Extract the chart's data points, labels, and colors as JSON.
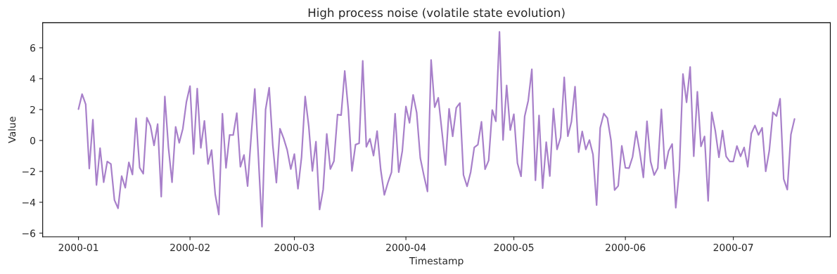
{
  "chart_data": {
    "type": "line",
    "title": "High process noise (volatile state evolution)",
    "xlabel": "Timestamp",
    "ylabel": "Value",
    "x": [
      "2000-01-01",
      "2000-01-02",
      "2000-01-03",
      "2000-01-04",
      "2000-01-05",
      "2000-01-06",
      "2000-01-07",
      "2000-01-08",
      "2000-01-09",
      "2000-01-10",
      "2000-01-11",
      "2000-01-12",
      "2000-01-13",
      "2000-01-14",
      "2000-01-15",
      "2000-01-16",
      "2000-01-17",
      "2000-01-18",
      "2000-01-19",
      "2000-01-20",
      "2000-01-21",
      "2000-01-22",
      "2000-01-23",
      "2000-01-24",
      "2000-01-25",
      "2000-01-26",
      "2000-01-27",
      "2000-01-28",
      "2000-01-29",
      "2000-01-30",
      "2000-01-31",
      "2000-02-01",
      "2000-02-02",
      "2000-02-03",
      "2000-02-04",
      "2000-02-05",
      "2000-02-06",
      "2000-02-07",
      "2000-02-08",
      "2000-02-09",
      "2000-02-10",
      "2000-02-11",
      "2000-02-12",
      "2000-02-13",
      "2000-02-14",
      "2000-02-15",
      "2000-02-16",
      "2000-02-17",
      "2000-02-18",
      "2000-02-19",
      "2000-02-20",
      "2000-02-21",
      "2000-02-22",
      "2000-02-23",
      "2000-02-24",
      "2000-02-25",
      "2000-02-26",
      "2000-02-27",
      "2000-02-28",
      "2000-02-29",
      "2000-03-01",
      "2000-03-02",
      "2000-03-03",
      "2000-03-04",
      "2000-03-05",
      "2000-03-06",
      "2000-03-07",
      "2000-03-08",
      "2000-03-09",
      "2000-03-10",
      "2000-03-11",
      "2000-03-12",
      "2000-03-13",
      "2000-03-14",
      "2000-03-15",
      "2000-03-16",
      "2000-03-17",
      "2000-03-18",
      "2000-03-19",
      "2000-03-20",
      "2000-03-21",
      "2000-03-22",
      "2000-03-23",
      "2000-03-24",
      "2000-03-25",
      "2000-03-26",
      "2000-03-27",
      "2000-03-28",
      "2000-03-29",
      "2000-03-30",
      "2000-03-31",
      "2000-04-01",
      "2000-04-02",
      "2000-04-03",
      "2000-04-04",
      "2000-04-05",
      "2000-04-06",
      "2000-04-07",
      "2000-04-08",
      "2000-04-09",
      "2000-04-10",
      "2000-04-11",
      "2000-04-12",
      "2000-04-13",
      "2000-04-14",
      "2000-04-15",
      "2000-04-16",
      "2000-04-17",
      "2000-04-18",
      "2000-04-19",
      "2000-04-20",
      "2000-04-21",
      "2000-04-22",
      "2000-04-23",
      "2000-04-24",
      "2000-04-25",
      "2000-04-26",
      "2000-04-27",
      "2000-04-28",
      "2000-04-29",
      "2000-04-30",
      "2000-05-01",
      "2000-05-02",
      "2000-05-03",
      "2000-05-04",
      "2000-05-05",
      "2000-05-06",
      "2000-05-07",
      "2000-05-08",
      "2000-05-09",
      "2000-05-10",
      "2000-05-11",
      "2000-05-12",
      "2000-05-13",
      "2000-05-14",
      "2000-05-15",
      "2000-05-16",
      "2000-05-17",
      "2000-05-18",
      "2000-05-19",
      "2000-05-20",
      "2000-05-21",
      "2000-05-22",
      "2000-05-23",
      "2000-05-24",
      "2000-05-25",
      "2000-05-26",
      "2000-05-27",
      "2000-05-28",
      "2000-05-29",
      "2000-05-30",
      "2000-05-31",
      "2000-06-01",
      "2000-06-02",
      "2000-06-03",
      "2000-06-04",
      "2000-06-05",
      "2000-06-06",
      "2000-06-07",
      "2000-06-08",
      "2000-06-09",
      "2000-06-10",
      "2000-06-11",
      "2000-06-12",
      "2000-06-13",
      "2000-06-14",
      "2000-06-15",
      "2000-06-16",
      "2000-06-17",
      "2000-06-18",
      "2000-06-19",
      "2000-06-20",
      "2000-06-21",
      "2000-06-22",
      "2000-06-23",
      "2000-06-24",
      "2000-06-25",
      "2000-06-26",
      "2000-06-27",
      "2000-06-28",
      "2000-06-29",
      "2000-06-30",
      "2000-07-01",
      "2000-07-02",
      "2000-07-03",
      "2000-07-04",
      "2000-07-05",
      "2000-07-06",
      "2000-07-07",
      "2000-07-08",
      "2000-07-09",
      "2000-07-10",
      "2000-07-11",
      "2000-07-12",
      "2000-07-13",
      "2000-07-14",
      "2000-07-15",
      "2000-07-16",
      "2000-07-17",
      "2000-07-18"
    ],
    "series": [
      {
        "color": "#a880ca",
        "values": [
          2.03,
          3.0,
          2.35,
          -1.82,
          1.35,
          -2.88,
          -0.5,
          -2.7,
          -1.36,
          -1.52,
          -3.86,
          -4.39,
          -2.3,
          -3.06,
          -1.42,
          -2.2,
          1.44,
          -1.76,
          -2.15,
          1.47,
          0.95,
          -0.32,
          1.06,
          -3.64,
          2.85,
          -0.45,
          -2.7,
          0.88,
          -0.15,
          0.76,
          2.5,
          3.52,
          -0.88,
          3.36,
          -0.48,
          1.27,
          -1.52,
          -0.62,
          -3.48,
          -4.79,
          1.73,
          -1.77,
          0.36,
          0.35,
          1.77,
          -1.7,
          -0.94,
          -2.95,
          0.3,
          3.33,
          -1.06,
          -5.58,
          2.0,
          3.41,
          -0.3,
          -2.73,
          0.76,
          0.15,
          -0.61,
          -1.85,
          -0.88,
          -3.12,
          -1.06,
          2.85,
          0.91,
          -1.97,
          -0.08,
          -4.47,
          -3.18,
          0.42,
          -1.85,
          -1.33,
          1.67,
          1.64,
          4.5,
          1.97,
          -1.97,
          -0.27,
          -0.18,
          5.15,
          -0.41,
          0.11,
          -0.98,
          0.61,
          -1.89,
          -3.52,
          -2.73,
          -2.05,
          1.73,
          -2.05,
          -0.68,
          2.2,
          1.14,
          2.95,
          1.79,
          -1.14,
          -2.27,
          -3.3,
          5.21,
          2.15,
          2.76,
          0.61,
          -1.59,
          2.05,
          0.27,
          2.12,
          2.42,
          -2.23,
          -2.97,
          -2.05,
          -0.45,
          -0.27,
          1.21,
          -1.86,
          -1.29,
          1.97,
          1.24,
          7.03,
          0.03,
          3.56,
          0.67,
          1.7,
          -1.47,
          -2.32,
          1.55,
          2.58,
          4.61,
          -2.58,
          1.62,
          -3.09,
          -0.11,
          -2.3,
          2.06,
          -0.58,
          0.2,
          4.09,
          0.27,
          1.21,
          3.48,
          -0.76,
          0.58,
          -0.58,
          0.03,
          -0.91,
          -4.18,
          0.82,
          1.74,
          1.44,
          0.0,
          -3.21,
          -2.94,
          -0.35,
          -1.77,
          -1.79,
          -1.06,
          0.58,
          -0.76,
          -2.39,
          1.24,
          -1.36,
          -2.24,
          -1.79,
          2.02,
          -1.82,
          -0.68,
          -0.23,
          -4.35,
          -1.89,
          4.3,
          2.47,
          4.76,
          -1.02,
          3.15,
          -0.38,
          0.26,
          -3.91,
          1.82,
          0.61,
          -1.09,
          0.64,
          -1.03,
          -1.36,
          -1.36,
          -0.36,
          -1.03,
          -0.45,
          -1.7,
          0.45,
          0.97,
          0.36,
          0.82,
          -2.0,
          -0.65,
          1.82,
          1.58,
          2.7,
          -2.5,
          -3.18,
          0.38,
          1.39
        ]
      }
    ],
    "xlim": [
      "1999-12-22T01:12",
      "2000-07-27T22:48"
    ],
    "xticks": [
      {
        "value": "2000-01-01",
        "label": "2000-01"
      },
      {
        "value": "2000-02-01",
        "label": "2000-02"
      },
      {
        "value": "2000-03-01",
        "label": "2000-03"
      },
      {
        "value": "2000-04-01",
        "label": "2000-04"
      },
      {
        "value": "2000-05-01",
        "label": "2000-05"
      },
      {
        "value": "2000-06-01",
        "label": "2000-06"
      },
      {
        "value": "2000-07-01",
        "label": "2000-07"
      }
    ],
    "ylim": [
      -6.23,
      7.62
    ],
    "yticks": [
      {
        "value": -6,
        "label": "−6"
      },
      {
        "value": -4,
        "label": "−4"
      },
      {
        "value": -2,
        "label": "−2"
      },
      0,
      2,
      4,
      6
    ],
    "grid": false,
    "marker": "none",
    "line_style": "solid"
  }
}
